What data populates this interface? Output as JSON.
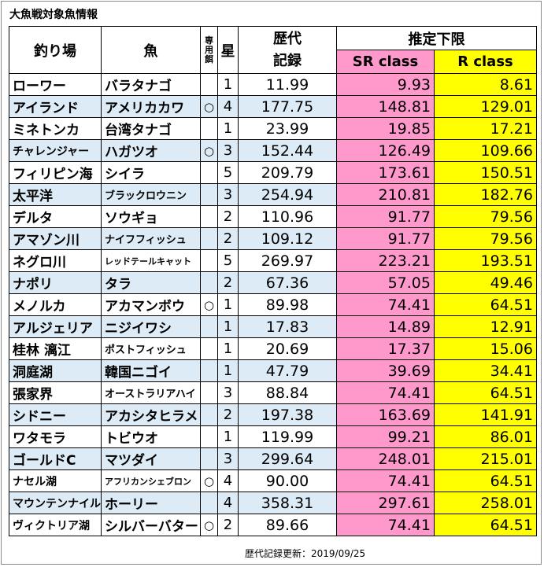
{
  "title": "大魚戦対象魚情報",
  "headers": {
    "place": "釣り場",
    "fish": "魚",
    "bait": [
      "専",
      "用",
      "餌"
    ],
    "star": "星",
    "record_line1": "歴代",
    "record_line2": "記録",
    "estimate": "推定下限",
    "sr_class": "SR class",
    "r_class": "R class"
  },
  "rows": [
    {
      "place": "ローワー",
      "fish": "バラタナゴ",
      "bait": "",
      "star": "1",
      "record": "11.99",
      "sr": "9.93",
      "r": "8.61"
    },
    {
      "place": "アイランド",
      "fish": "アメリカカワ",
      "bait": "○",
      "star": "4",
      "record": "177.75",
      "sr": "148.81",
      "r": "129.01"
    },
    {
      "place": "ミネトンカ",
      "fish": "台湾タナゴ",
      "bait": "",
      "star": "1",
      "record": "23.99",
      "sr": "19.85",
      "r": "17.21"
    },
    {
      "place": "チャレンジャー",
      "fish": "ハガツオ",
      "bait": "○",
      "star": "3",
      "record": "152.44",
      "sr": "126.49",
      "r": "109.66"
    },
    {
      "place": "フィリピン海",
      "fish": "シイラ",
      "bait": "",
      "star": "5",
      "record": "209.79",
      "sr": "173.61",
      "r": "150.51"
    },
    {
      "place": "太平洋",
      "fish": "ブラックロウニン",
      "bait": "",
      "star": "3",
      "record": "254.94",
      "sr": "210.81",
      "r": "182.76"
    },
    {
      "place": "デルタ",
      "fish": "ソウギョ",
      "bait": "",
      "star": "2",
      "record": "110.96",
      "sr": "91.77",
      "r": "79.56"
    },
    {
      "place": "アマゾン川",
      "fish": "ナイフフィッシュ",
      "bait": "",
      "star": "2",
      "record": "109.12",
      "sr": "91.77",
      "r": "79.56"
    },
    {
      "place": "ネグロ川",
      "fish": "レッドテールキャット",
      "bait": "",
      "star": "5",
      "record": "269.97",
      "sr": "223.21",
      "r": "193.51"
    },
    {
      "place": "ナポリ",
      "fish": "タラ",
      "bait": "",
      "star": "2",
      "record": "67.36",
      "sr": "57.05",
      "r": "49.46"
    },
    {
      "place": "メノルカ",
      "fish": "アカマンボウ",
      "bait": "○",
      "star": "1",
      "record": "89.98",
      "sr": "74.41",
      "r": "64.51"
    },
    {
      "place": "アルジェリア",
      "fish": "ニジイワシ",
      "bait": "",
      "star": "1",
      "record": "17.83",
      "sr": "14.89",
      "r": "12.91"
    },
    {
      "place": "桂林 漓江",
      "fish": "ポストフィッシュ",
      "bait": "",
      "star": "1",
      "record": "20.69",
      "sr": "17.37",
      "r": "15.06"
    },
    {
      "place": "洞庭湖",
      "fish": "韓国ニゴイ",
      "bait": "",
      "star": "1",
      "record": "47.79",
      "sr": "39.69",
      "r": "34.41"
    },
    {
      "place": "張家界",
      "fish": "オーストラリアハイ",
      "bait": "",
      "star": "3",
      "record": "88.84",
      "sr": "74.41",
      "r": "64.51"
    },
    {
      "place": "シドニー",
      "fish": "アカシタヒラメ",
      "bait": "",
      "star": "2",
      "record": "197.38",
      "sr": "163.69",
      "r": "141.91"
    },
    {
      "place": "ワタモラ",
      "fish": "トビウオ",
      "bait": "",
      "star": "1",
      "record": "119.99",
      "sr": "99.21",
      "r": "86.01"
    },
    {
      "place": "ゴールドC",
      "fish": "マツダイ",
      "bait": "",
      "star": "3",
      "record": "299.64",
      "sr": "248.01",
      "r": "215.01"
    },
    {
      "place": "ナセル湖",
      "fish": "アフリカンシェブロン",
      "bait": "○",
      "star": "4",
      "record": "90.00",
      "sr": "74.41",
      "r": "64.51"
    },
    {
      "place": "マウンテンナイル",
      "fish": "ホーリー",
      "bait": "",
      "star": "4",
      "record": "358.31",
      "sr": "297.61",
      "r": "258.01"
    },
    {
      "place": "ヴィクトリア湖",
      "fish": "シルバーバター",
      "bait": "○",
      "star": "2",
      "record": "89.66",
      "sr": "74.41",
      "r": "64.51"
    }
  ],
  "footer": "歴代記録更新：2019/09/25",
  "colors": {
    "sr": "#ff99cc",
    "r": "#ffff00",
    "shade": "#dcebf5"
  }
}
